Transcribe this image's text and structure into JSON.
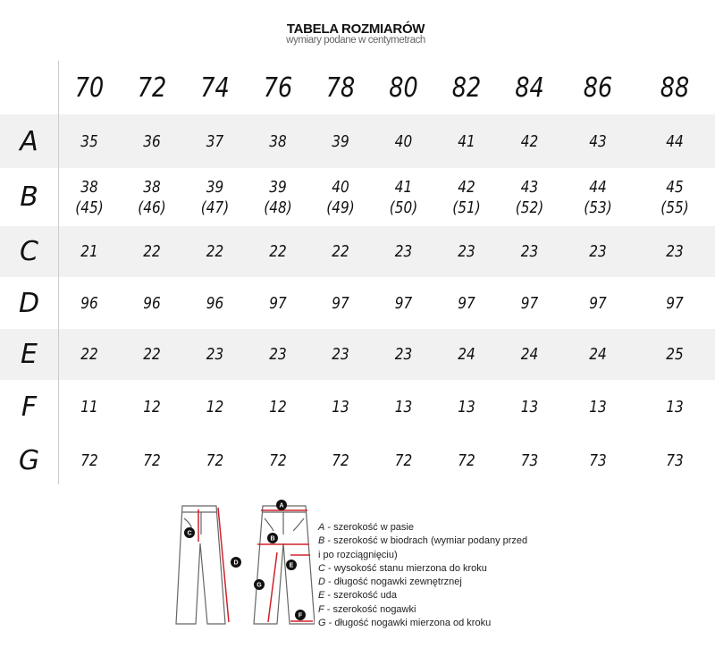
{
  "title": "TABELA ROZMIARÓW",
  "subtitle": "wymiary podane w centymetrach",
  "sizes": [
    "70",
    "72",
    "74",
    "76",
    "78",
    "80",
    "82",
    "84",
    "86",
    "88"
  ],
  "rows": [
    {
      "label": "A",
      "values": [
        "35",
        "36",
        "37",
        "38",
        "39",
        "40",
        "41",
        "42",
        "43",
        "44"
      ]
    },
    {
      "label": "B",
      "values": [
        "38\n(45)",
        "38\n(46)",
        "39\n(47)",
        "39\n(48)",
        "40\n(49)",
        "41\n(50)",
        "42\n(51)",
        "43\n(52)",
        "44\n(53)",
        "45\n(55)"
      ]
    },
    {
      "label": "C",
      "values": [
        "21",
        "22",
        "22",
        "22",
        "22",
        "23",
        "23",
        "23",
        "23",
        "23"
      ]
    },
    {
      "label": "D",
      "values": [
        "96",
        "96",
        "96",
        "97",
        "97",
        "97",
        "97",
        "97",
        "97",
        "97"
      ]
    },
    {
      "label": "E",
      "values": [
        "22",
        "22",
        "23",
        "23",
        "23",
        "23",
        "24",
        "24",
        "24",
        "25"
      ]
    },
    {
      "label": "F",
      "values": [
        "11",
        "12",
        "12",
        "12",
        "13",
        "13",
        "13",
        "13",
        "13",
        "13"
      ]
    },
    {
      "label": "G",
      "values": [
        "72",
        "72",
        "72",
        "72",
        "72",
        "72",
        "72",
        "73",
        "73",
        "73"
      ]
    }
  ],
  "legend": [
    {
      "key": "A",
      "text": " - szerokość w pasie"
    },
    {
      "key": "B",
      "text": " - szerokość w biodrach (wymiar podany przed"
    },
    {
      "key": "",
      "text": "i po rozciągnięciu)"
    },
    {
      "key": "C",
      "text": " - wysokość stanu mierzona do kroku"
    },
    {
      "key": "D",
      "text": " - długość nogawki zewnętrznej"
    },
    {
      "key": "E",
      "text": " - szerokość uda"
    },
    {
      "key": "F",
      "text": " - szerokość nogawki"
    },
    {
      "key": "G",
      "text": " - długość nogawki mierzona od kroku"
    }
  ],
  "diagram_labels": {
    "a": "A",
    "b": "B",
    "c": "C",
    "d": "D",
    "e": "E",
    "f": "F",
    "g": "G"
  },
  "colors": {
    "stripe": "#f1f1f1",
    "arrow": "#d0232a"
  }
}
